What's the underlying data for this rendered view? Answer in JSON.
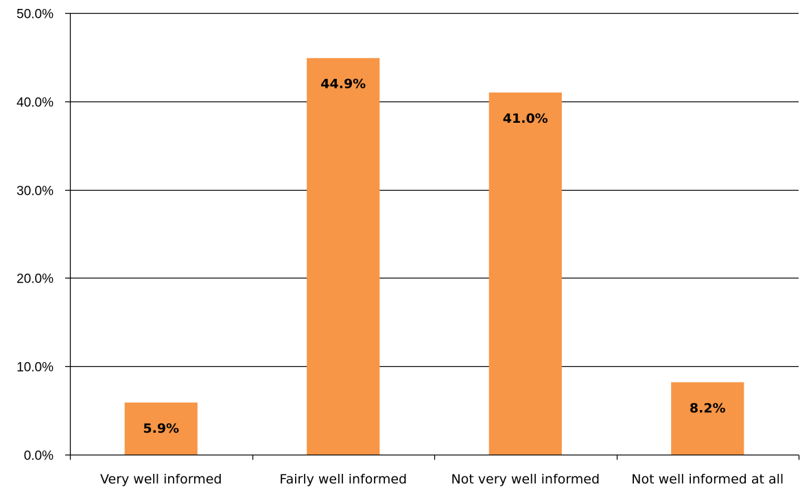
{
  "chart_data": {
    "type": "bar",
    "title": "",
    "xlabel": "",
    "ylabel": "",
    "categories": [
      "Very well informed",
      "Fairly well informed",
      "Not very well informed",
      "Not well informed at all"
    ],
    "values": [
      5.9,
      44.9,
      41.0,
      8.2
    ],
    "data_labels": [
      "5.9%",
      "44.9%",
      "41.0%",
      "8.2%"
    ],
    "ylim": [
      0,
      50
    ],
    "yticks": [
      0,
      10,
      20,
      30,
      40,
      50
    ],
    "ytick_labels": [
      "0.0%",
      "10.0%",
      "20.0%",
      "30.0%",
      "40.0%",
      "50.0%"
    ],
    "grid": true,
    "legend": "none",
    "bar_color": "#f79646",
    "grid_color": "#000000"
  }
}
